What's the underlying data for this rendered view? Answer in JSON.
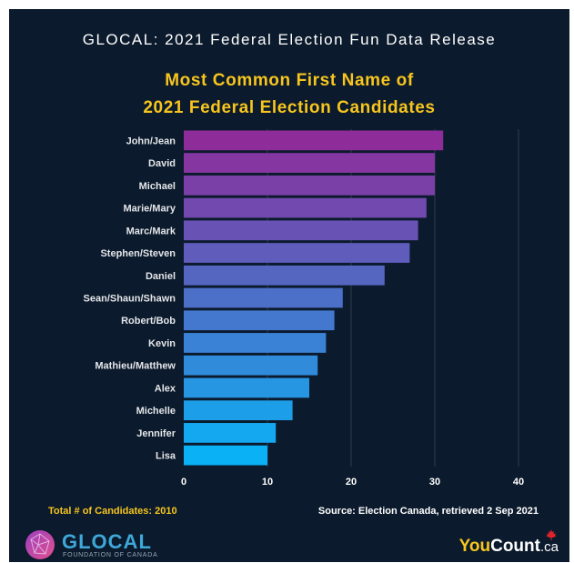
{
  "header": {
    "supertitle": "GLOCAL: 2021 Federal Election Fun Data Release",
    "title_line1": "Most Common First Name of",
    "title_line2": "2021 Federal Election Candidates"
  },
  "chart_data": {
    "type": "bar",
    "orientation": "horizontal",
    "categories": [
      "John/Jean",
      "David",
      "Michael",
      "Marie/Mary",
      "Marc/Mark",
      "Stephen/Steven",
      "Daniel",
      "Sean/Shaun/Shawn",
      "Robert/Bob",
      "Kevin",
      "Mathieu/Matthew",
      "Alex",
      "Michelle",
      "Jennifer",
      "Lisa"
    ],
    "values": [
      31,
      30,
      30,
      29,
      28,
      27,
      24,
      19,
      18,
      17,
      16,
      15,
      13,
      11,
      10
    ],
    "xlim": [
      0,
      40
    ],
    "xticks": [
      0,
      10,
      20,
      30,
      40
    ],
    "grid": "vertical",
    "legend": "none",
    "colors": {
      "top": "#8e2d9a",
      "bottom": "#0ab1f5",
      "tick_label": "#ffffff",
      "category_label": "#e4e6ea",
      "grid": "#2f3c4e"
    }
  },
  "footer": {
    "total_label": "Total # of Candidates: 2010",
    "source_label": "Source: Election Canada, retrieved 2 Sep 2021"
  },
  "logos": {
    "glocal_name": "GLOCAL",
    "glocal_sub": "FOUNDATION OF CANADA",
    "youcount_you": "You",
    "youcount_count": "Count",
    "youcount_ca": ".ca"
  }
}
